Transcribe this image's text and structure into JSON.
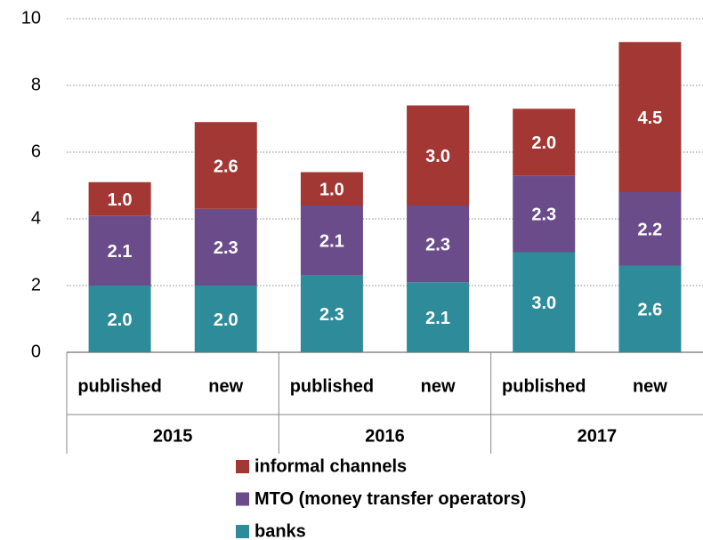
{
  "chart_data": {
    "type": "stacked_bar",
    "groups": [
      "2015",
      "2016",
      "2017"
    ],
    "categories": [
      "published",
      "new",
      "published",
      "new",
      "published",
      "new"
    ],
    "series": [
      {
        "name": "banks",
        "color": "#2e8b9a",
        "values": [
          2.0,
          2.0,
          2.3,
          2.1,
          3.0,
          2.6
        ],
        "value_labels": [
          "2.0",
          "2.0",
          "2.3",
          "2.1",
          "3.0",
          "2.6"
        ]
      },
      {
        "name": "MTO (money transfer operators)",
        "color": "#6b4c8a",
        "values": [
          2.1,
          2.3,
          2.1,
          2.3,
          2.3,
          2.2
        ],
        "value_labels": [
          "2.1",
          "2.3",
          "2.1",
          "2.3",
          "2.3",
          "2.2"
        ]
      },
      {
        "name": "informal channels",
        "color": "#a23734",
        "values": [
          1.0,
          2.6,
          1.0,
          3.0,
          2.0,
          4.5
        ],
        "value_labels": [
          "1.0",
          "2.6",
          "1.0",
          "3.0",
          "2.0",
          "4.5"
        ]
      }
    ],
    "ylim": [
      0,
      10
    ],
    "yticks": [
      0,
      2,
      4,
      6,
      8,
      10
    ],
    "grid": true
  }
}
